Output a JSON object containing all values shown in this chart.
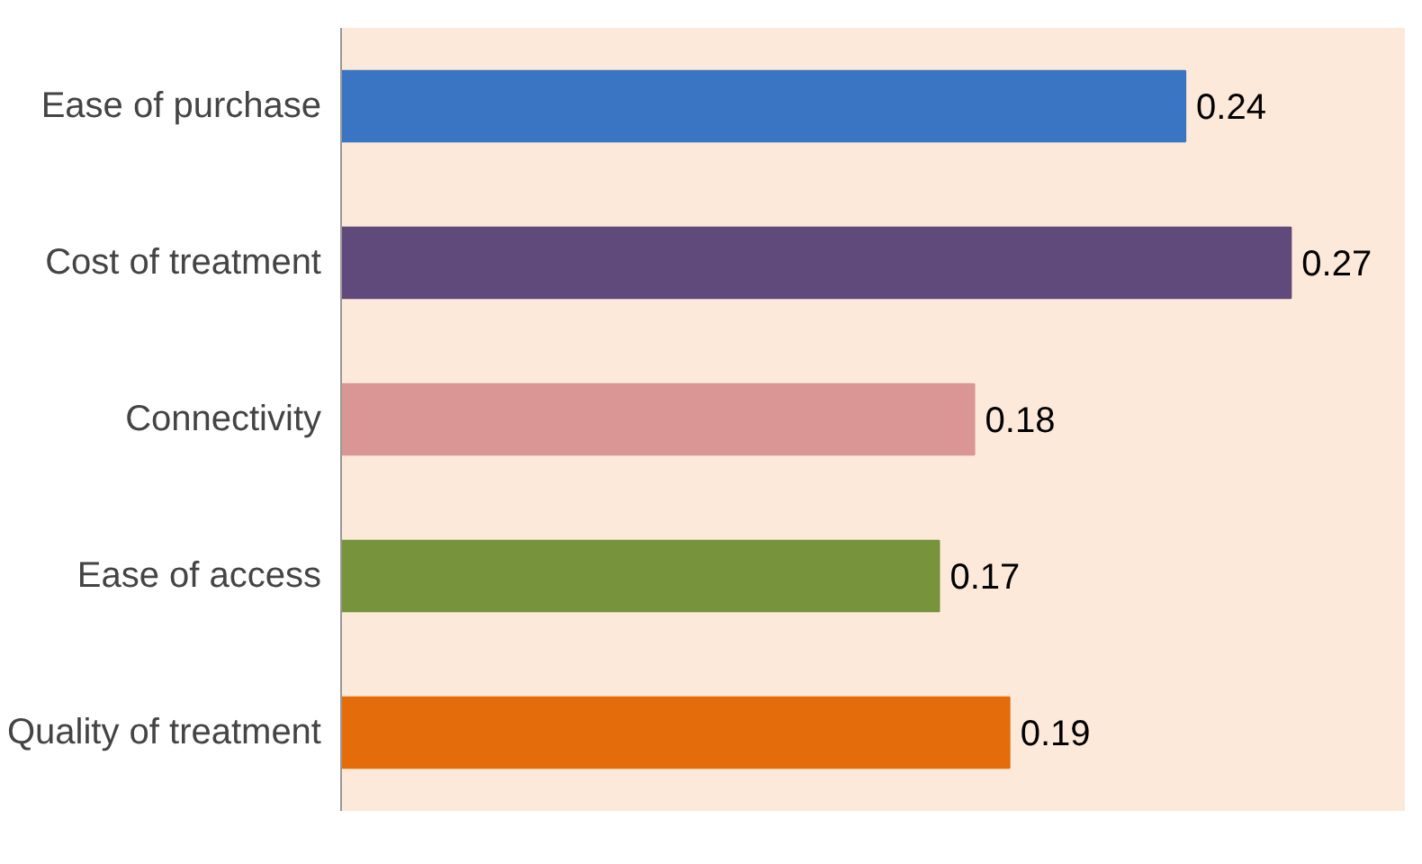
{
  "chart_data": {
    "type": "bar",
    "orientation": "horizontal",
    "categories": [
      "Ease of purchase",
      "Cost of treatment",
      "Connectivity",
      "Ease of access",
      "Quality of treatment"
    ],
    "values": [
      0.24,
      0.27,
      0.18,
      0.17,
      0.19
    ],
    "colors": [
      "#3a75c4",
      "#604a7b",
      "#d99694",
      "#77933c",
      "#e46c0a"
    ],
    "data_labels": true,
    "grid": false
  }
}
